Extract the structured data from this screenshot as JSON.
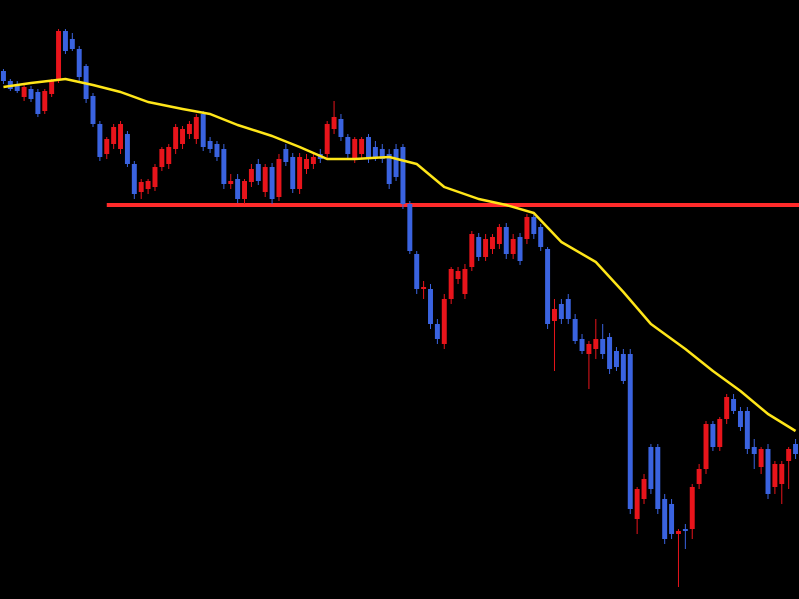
{
  "chart_data": {
    "type": "candlestick",
    "up_color": "#e8141b",
    "down_color": "#3a63e0",
    "xlim": [
      -0.5,
      115.5
    ],
    "ylim": [
      0,
      599
    ],
    "open": [
      528,
      518,
      515,
      502,
      510,
      507,
      488,
      505,
      520,
      568,
      560,
      550,
      533,
      503,
      475,
      445,
      455,
      450,
      465,
      435,
      407,
      410,
      412,
      432,
      435,
      450,
      455,
      465,
      460,
      485,
      458,
      455,
      450,
      415,
      420,
      400,
      417,
      435,
      407,
      432,
      402,
      450,
      442,
      410,
      430,
      435,
      445,
      445,
      470,
      480,
      462,
      440,
      445,
      462,
      452,
      450,
      445,
      450,
      452,
      395,
      345,
      310,
      310,
      275,
      255,
      300,
      320,
      305,
      332,
      362,
      342,
      350,
      355,
      372,
      345,
      362,
      360,
      382,
      372,
      350,
      278,
      295,
      300,
      280,
      260,
      245,
      250,
      260,
      262,
      248,
      245,
      245,
      80,
      100,
      152,
      152,
      100,
      95,
      65,
      70,
      70,
      115,
      130,
      175,
      152,
      180,
      200,
      188,
      188,
      152,
      132,
      150,
      112,
      115,
      138,
      155
    ],
    "high": [
      530,
      520,
      518,
      515,
      513,
      510,
      510,
      520,
      570,
      570,
      566,
      553,
      535,
      506,
      478,
      462,
      475,
      478,
      468,
      438,
      420,
      420,
      435,
      452,
      455,
      475,
      473,
      478,
      485,
      488,
      462,
      458,
      455,
      425,
      425,
      420,
      435,
      440,
      435,
      436,
      445,
      455,
      446,
      446,
      445,
      445,
      450,
      478,
      498,
      485,
      465,
      462,
      462,
      465,
      458,
      455,
      450,
      455,
      455,
      398,
      348,
      318,
      315,
      280,
      305,
      332,
      332,
      335,
      368,
      366,
      365,
      365,
      375,
      376,
      365,
      366,
      385,
      385,
      375,
      352,
      300,
      300,
      305,
      285,
      265,
      258,
      280,
      275,
      266,
      252,
      250,
      250,
      112,
      125,
      155,
      155,
      105,
      100,
      70,
      75,
      115,
      135,
      178,
      178,
      182,
      205,
      205,
      192,
      192,
      160,
      152,
      155,
      138,
      138,
      152,
      160
    ],
    "low": [
      515,
      508,
      506,
      498,
      497,
      482,
      485,
      502,
      516,
      545,
      548,
      518,
      496,
      472,
      438,
      440,
      450,
      445,
      432,
      400,
      400,
      405,
      408,
      428,
      430,
      445,
      450,
      460,
      455,
      448,
      446,
      438,
      410,
      410,
      396,
      395,
      412,
      414,
      402,
      395,
      398,
      433,
      406,
      405,
      425,
      430,
      436,
      440,
      465,
      458,
      440,
      436,
      440,
      436,
      438,
      436,
      410,
      418,
      390,
      345,
      305,
      300,
      270,
      255,
      250,
      295,
      315,
      300,
      328,
      338,
      338,
      345,
      350,
      340,
      340,
      334,
      355,
      360,
      348,
      270,
      228,
      275,
      275,
      255,
      245,
      210,
      240,
      240,
      225,
      228,
      215,
      85,
      65,
      95,
      105,
      85,
      55,
      60,
      12,
      50,
      60,
      110,
      125,
      148,
      148,
      175,
      185,
      168,
      145,
      130,
      125,
      100,
      105,
      95,
      110,
      140
    ],
    "close": [
      518,
      510,
      508,
      512,
      500,
      485,
      508,
      518,
      568,
      548,
      550,
      522,
      500,
      475,
      442,
      460,
      472,
      475,
      435,
      405,
      417,
      418,
      432,
      450,
      452,
      472,
      470,
      475,
      482,
      452,
      450,
      442,
      415,
      418,
      400,
      418,
      430,
      418,
      432,
      400,
      440,
      437,
      410,
      442,
      440,
      442,
      440,
      475,
      482,
      462,
      445,
      460,
      460,
      440,
      442,
      440,
      415,
      422,
      395,
      348,
      310,
      312,
      275,
      260,
      300,
      330,
      328,
      330,
      365,
      342,
      360,
      362,
      372,
      345,
      360,
      338,
      382,
      365,
      352,
      275,
      290,
      280,
      280,
      258,
      248,
      255,
      260,
      245,
      230,
      232,
      218,
      90,
      110,
      120,
      110,
      90,
      60,
      65,
      68,
      68,
      112,
      130,
      175,
      152,
      180,
      202,
      188,
      172,
      150,
      145,
      150,
      105,
      135,
      135,
      150,
      145
    ],
    "ma": {
      "color": "#ffe619",
      "x": [
        0,
        4,
        9,
        13,
        17,
        21,
        26,
        30,
        34,
        39,
        43,
        47,
        51,
        56,
        60,
        64,
        69,
        73,
        77,
        81,
        86,
        90,
        94,
        99,
        103,
        107,
        111,
        115
      ],
      "values": [
        512,
        516,
        520,
        514,
        507,
        497,
        490,
        485,
        474,
        463,
        452,
        440,
        440,
        442,
        435,
        412,
        400,
        394,
        386,
        357,
        337,
        307,
        275,
        250,
        228,
        208,
        185,
        168
      ]
    },
    "hline": {
      "value": 394,
      "x_start": 15,
      "color": "#ff2a2a"
    }
  }
}
